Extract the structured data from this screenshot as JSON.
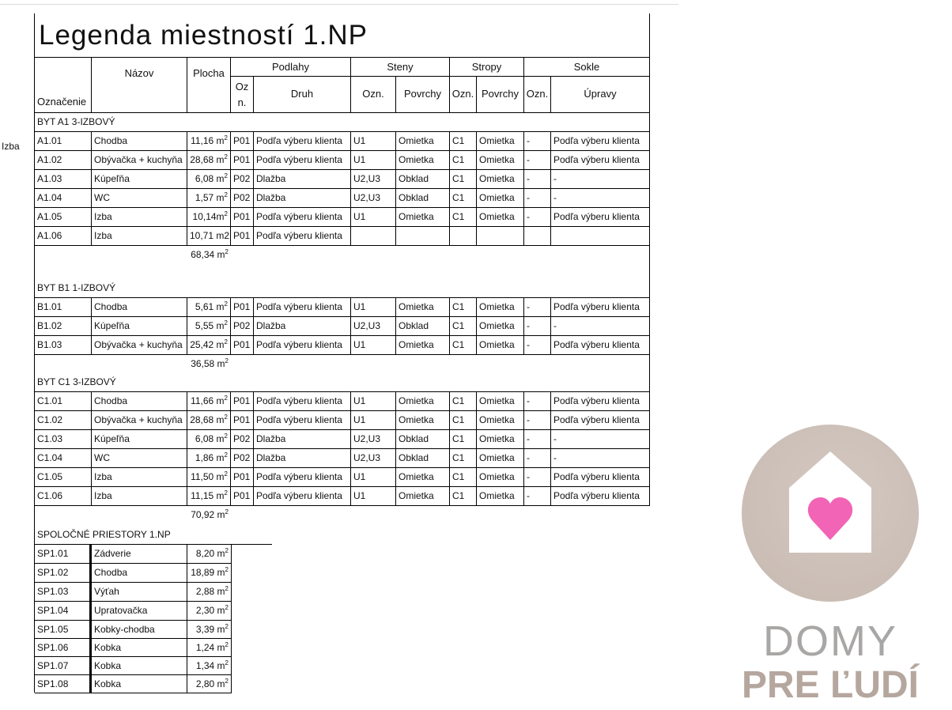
{
  "side_label": "Izba",
  "title": "Legenda miestností 1.NP",
  "headers": {
    "oznacenie": "Označenie",
    "nazov": "Názov",
    "plocha": "Plocha",
    "podlahy": "Podlahy",
    "oz_n": "Oz n.",
    "druh": "Druh",
    "steny": "Steny",
    "steny_ozn": "Ozn.",
    "steny_povrchy": "Povrchy",
    "stropy": "Stropy",
    "stropy_ozn": "Ozn.",
    "stropy_povrchy": "Povrchy",
    "sokle": "Sokle",
    "sokle_ozn": "Ozn.",
    "upravy": "Úpravy"
  },
  "sections": [
    {
      "label": "BYT A1 3-IZBOVÝ",
      "total": "68,34 m²",
      "rows": [
        [
          "A1.01",
          "Chodba",
          "11,16 m²",
          "P01",
          "Podľa výberu klienta",
          "U1",
          "Omietka",
          "C1",
          "Omietka",
          "-",
          "Podľa výberu klienta"
        ],
        [
          "A1.02",
          "Obývačka + kuchyňa",
          "28,68 m²",
          "P01",
          "Podľa výberu klienta",
          "U1",
          "Omietka",
          "C1",
          "Omietka",
          "-",
          "Podľa výberu klienta"
        ],
        [
          "A1.03",
          "Kúpeľňa",
          "6,08 m²",
          "P02",
          "Dlažba",
          "U2,U3",
          "Obklad",
          "C1",
          "Omietka",
          "-",
          "-"
        ],
        [
          "A1.04",
          "WC",
          "1,57 m²",
          "P02",
          "Dlažba",
          "U2,U3",
          "Obklad",
          "C1",
          "Omietka",
          "-",
          "-"
        ],
        [
          "A1.05",
          "Izba",
          "10,14m²",
          "P01",
          "Podľa výberu klienta",
          "U1",
          "Omietka",
          "C1",
          "Omietka",
          "-",
          "Podľa výberu klienta"
        ],
        [
          "A1.06",
          "Izba",
          "10,71 m2",
          "P01",
          "Podľa výberu klienta",
          "",
          "",
          "",
          "",
          "",
          ""
        ]
      ]
    },
    {
      "label": "BYT B1 1-IZBOVÝ",
      "total": "36,58 m²",
      "rows": [
        [
          "B1.01",
          "Chodba",
          "5,61 m²",
          "P01",
          "Podľa výberu klienta",
          "U1",
          "Omietka",
          "C1",
          "Omietka",
          "-",
          "Podľa výberu klienta"
        ],
        [
          "B1.02",
          "Kúpeľňa",
          "5,55 m²",
          "P02",
          "Dlažba",
          "U2,U3",
          "Obklad",
          "C1",
          "Omietka",
          "-",
          "-"
        ],
        [
          "B1.03",
          "Obývačka + kuchyňa",
          "25,42 m²",
          "P01",
          "Podľa výberu klienta",
          "U1",
          "Omietka",
          "C1",
          "Omietka",
          "-",
          "Podľa výberu klienta"
        ]
      ]
    },
    {
      "label": "BYT C1 3-IZBOVÝ",
      "total": "70,92 m²",
      "rows": [
        [
          "C1.01",
          "Chodba",
          "11,66 m²",
          "P01",
          "Podľa výberu klienta",
          "U1",
          "Omietka",
          "C1",
          "Omietka",
          "-",
          "Podľa výberu klienta"
        ],
        [
          "C1.02",
          "Obývačka + kuchyňa",
          "28,68 m²",
          "P01",
          "Podľa výberu klienta",
          "U1",
          "Omietka",
          "C1",
          "Omietka",
          "-",
          "Podľa výberu klienta"
        ],
        [
          "C1.03",
          "Kúpeľňa",
          "6,08 m²",
          "P02",
          "Dlažba",
          "U2,U3",
          "Obklad",
          "C1",
          "Omietka",
          "-",
          "-"
        ],
        [
          "C1.04",
          "WC",
          "1,86 m²",
          "P02",
          "Dlažba",
          "U2,U3",
          "Obklad",
          "C1",
          "Omietka",
          "-",
          "-"
        ],
        [
          "C1.05",
          "Izba",
          "11,50 m²",
          "P01",
          "Podľa výberu klienta",
          "U1",
          "Omietka",
          "C1",
          "Omietka",
          "-",
          "Podľa výberu klienta"
        ],
        [
          "C1.06",
          "Izba",
          "11,15 m²",
          "P01",
          "Podľa výberu klienta",
          "U1",
          "Omietka",
          "C1",
          "Omietka",
          "-",
          "Podľa výberu klienta"
        ]
      ]
    }
  ],
  "common": {
    "label": "SPOLOČNÉ PRIESTORY 1.NP",
    "rows": [
      [
        "SP1.01",
        "Zádverie",
        "8,20 m²"
      ],
      [
        "SP1.02",
        "Chodba",
        "18,89 m²"
      ],
      [
        "SP1.03",
        "Výťah",
        "2,88 m²"
      ],
      [
        "SP1.04",
        "Upratovačka",
        "2,30 m²"
      ],
      [
        "SP1.05",
        "Kobky-chodba",
        "3,39 m²"
      ],
      [
        "SP1.06",
        "Kobka",
        "1,24 m²"
      ],
      [
        "SP1.07",
        "Kobka",
        "1,34 m²"
      ],
      [
        "SP1.08",
        "Kobka",
        "2,80 m²"
      ]
    ]
  },
  "logo": {
    "line1": "DOMY",
    "line2": "PRE ĽUDÍ",
    "circle_color": "#cbbeb5",
    "heart_color": "#f264b5"
  }
}
